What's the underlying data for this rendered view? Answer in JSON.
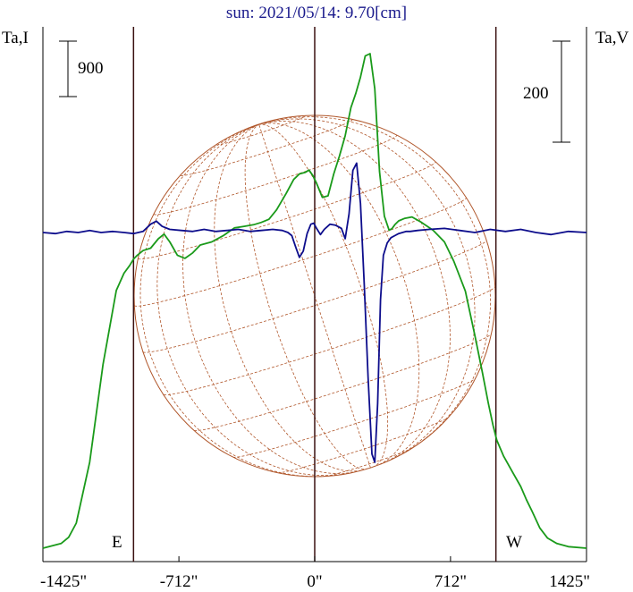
{
  "title": "sun: 2021/05/14: 9.70[cm]",
  "y_left_label": "Ta,I",
  "y_right_label": "Ta,V",
  "scale_left_label": "900",
  "scale_right_label": "200",
  "limb_labels": {
    "east": "E",
    "west": "W"
  },
  "colors": {
    "stokes_i": "#1a9a1a",
    "stokes_v": "#0d0d8c",
    "disk": "#b0562a",
    "axes": "#000000",
    "limb_lines": "#3a1010",
    "title": "#1a1a8c"
  },
  "chart_data": {
    "type": "line",
    "title": "sun: 2021/05/14: 9.70[cm]",
    "xlabel": "",
    "ylabel_left": "Ta,I",
    "ylabel_right": "Ta,V",
    "x_ticks": [
      {
        "value": -1425,
        "label": "-1425\""
      },
      {
        "value": -712,
        "label": "-712\""
      },
      {
        "value": 0,
        "label": "0\""
      },
      {
        "value": 712,
        "label": "712\""
      },
      {
        "value": 1425,
        "label": "1425\""
      }
    ],
    "xlim": [
      -1425,
      1425
    ],
    "limb_positions": [
      -950,
      950
    ],
    "scale_bars": {
      "left_ta_i": 900,
      "right_ta_v": 200
    },
    "series": [
      {
        "name": "I",
        "color": "#1a9a1a",
        "axis": "left",
        "x": [
          -1425,
          -1330,
          -1290,
          -1250,
          -1180,
          -1110,
          -1040,
          -1000,
          -970,
          -950,
          -930,
          -900,
          -860,
          -820,
          -790,
          -760,
          -720,
          -680,
          -640,
          -600,
          -540,
          -480,
          -420,
          -370,
          -320,
          -280,
          -240,
          -200,
          -150,
          -110,
          -80,
          -50,
          -30,
          -10,
          10,
          40,
          70,
          100,
          130,
          160,
          190,
          215,
          240,
          265,
          290,
          315,
          340,
          365,
          390,
          405,
          420,
          440,
          470,
          510,
          560,
          620,
          680,
          730,
          790,
          840,
          880,
          910,
          935,
          955,
          990,
          1040,
          1080,
          1110,
          1140,
          1180,
          1220,
          1270,
          1330,
          1425
        ],
        "y": [
          0,
          60,
          140,
          320,
          1100,
          2350,
          3300,
          3520,
          3620,
          3700,
          3750,
          3810,
          3840,
          3960,
          4020,
          3920,
          3750,
          3710,
          3780,
          3880,
          3920,
          4000,
          4100,
          4120,
          4140,
          4170,
          4210,
          4330,
          4540,
          4720,
          4790,
          4810,
          4840,
          4770,
          4670,
          4490,
          4510,
          4790,
          5020,
          5280,
          5640,
          5820,
          6030,
          6300,
          6330,
          5880,
          4820,
          4250,
          4070,
          4090,
          4140,
          4190,
          4220,
          4240,
          4170,
          4070,
          3920,
          3670,
          3290,
          2720,
          2240,
          1860,
          1570,
          1380,
          1180,
          960,
          790,
          620,
          470,
          260,
          130,
          60,
          20,
          0
        ]
      },
      {
        "name": "V",
        "color": "#0d0d8c",
        "axis": "right",
        "x": [
          -1425,
          -1360,
          -1300,
          -1240,
          -1180,
          -1120,
          -1060,
          -1000,
          -950,
          -900,
          -860,
          -830,
          -800,
          -760,
          -700,
          -640,
          -580,
          -520,
          -460,
          -400,
          -340,
          -280,
          -220,
          -170,
          -140,
          -120,
          -100,
          -80,
          -60,
          -40,
          -20,
          -5,
          10,
          30,
          50,
          80,
          110,
          140,
          160,
          180,
          200,
          220,
          240,
          260,
          280,
          300,
          315,
          330,
          345,
          360,
          380,
          400,
          420,
          440,
          460,
          480,
          500,
          540,
          600,
          680,
          760,
          840,
          920,
          1000,
          1080,
          1160,
          1240,
          1330,
          1425
        ],
        "y": [
          0,
          -1,
          1,
          0,
          2,
          0,
          1,
          0,
          -1,
          1,
          8,
          11,
          6,
          3,
          2,
          1,
          3,
          1,
          2,
          3,
          1,
          2,
          3,
          2,
          0,
          -3,
          -14,
          -24,
          -18,
          -1,
          8,
          9,
          4,
          -2,
          3,
          8,
          7,
          4,
          -6,
          18,
          60,
          67,
          28,
          -52,
          -140,
          -214,
          -222,
          -165,
          -65,
          -22,
          -10,
          -5,
          -3,
          -1,
          0,
          1,
          1,
          2,
          3,
          4,
          2,
          0,
          3,
          1,
          3,
          0,
          -2,
          1,
          0
        ]
      }
    ]
  }
}
